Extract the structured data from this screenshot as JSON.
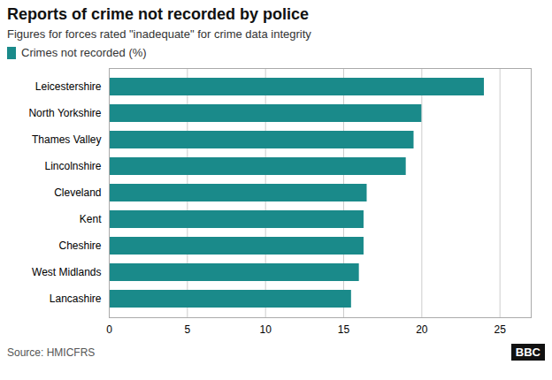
{
  "chart_data": {
    "type": "bar",
    "orientation": "horizontal",
    "title": "Reports of crime not recorded by police",
    "subtitle": "Figures for forces rated \"inadequate\" for crime data integrity",
    "categories": [
      "Lancashire",
      "West Midlands",
      "Cheshire",
      "Kent",
      "Cleveland",
      "Lincolnshire",
      "Thames Valley",
      "North Yorkshire",
      "Leicestershire"
    ],
    "series": [
      {
        "name": "Crimes not recorded (%)",
        "color": "#1a8a8a",
        "values": [
          15.5,
          16.0,
          16.3,
          16.3,
          16.5,
          19.0,
          19.5,
          20.0,
          24.0
        ]
      }
    ],
    "xlim": [
      0,
      27
    ],
    "xticks": [
      0,
      5,
      10,
      15,
      20,
      25
    ],
    "grid": true,
    "legend": "top-left",
    "annotations": [
      "Source: HMICFRS",
      "BBC"
    ]
  }
}
